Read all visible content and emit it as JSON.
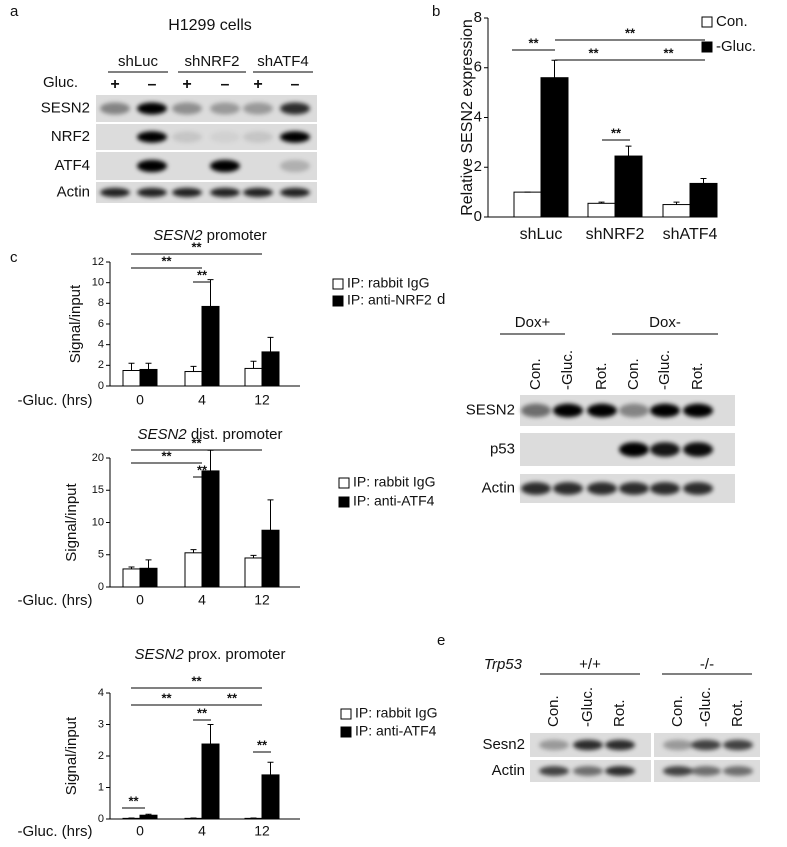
{
  "panel_labels": [
    "a",
    "b",
    "c",
    "d",
    "e"
  ],
  "blot_a": {
    "title": "H1299 cells",
    "groups": [
      "shLuc",
      "shNRF2",
      "shATF4"
    ],
    "treatment_label": "Gluc.",
    "treatments": [
      "+",
      "–",
      "+",
      "–",
      "+",
      "–"
    ],
    "rows": [
      "SESN2",
      "NRF2",
      "ATF4",
      "Actin"
    ]
  },
  "blot_d": {
    "groups": [
      "Dox+",
      "Dox-"
    ],
    "lanes": [
      "Con.",
      "-Gluc.",
      "Rot.",
      "Con.",
      "-Gluc.",
      "Rot."
    ],
    "rows": [
      "SESN2",
      "p53",
      "Actin"
    ]
  },
  "blot_e": {
    "genotype_label": "Trp53",
    "groups": [
      "+/+",
      "-/-"
    ],
    "lanes": [
      "Con.",
      "-Gluc.",
      "Rot.",
      "Con.",
      "-Gluc.",
      "Rot."
    ],
    "rows": [
      "Sesn2",
      "Actin"
    ]
  },
  "chart_data": [
    {
      "type": "bar",
      "y_label": "Relative SESN2 expression",
      "categories": [
        "shLuc",
        "shNRF2",
        "shATF4"
      ],
      "series": [
        {
          "name": "Con.",
          "color": "#ffffff",
          "values": [
            1,
            0.55,
            0.5
          ],
          "errors": [
            0,
            0.05,
            0.1
          ]
        },
        {
          "name": "-Gluc.",
          "color": "#000000",
          "values": [
            5.6,
            2.45,
            1.35
          ],
          "errors": [
            0.7,
            0.4,
            0.2
          ]
        }
      ],
      "ylim": [
        0,
        8
      ],
      "yticks": [
        0,
        2,
        4,
        6,
        8
      ],
      "annotations": [
        "**",
        "**",
        "**",
        "**",
        "**"
      ]
    },
    {
      "type": "bar",
      "title": "SESN2 promoter",
      "y_label": "Signal/input",
      "x_label": "-Gluc. (hrs)",
      "categories": [
        "0",
        "4",
        "12"
      ],
      "series": [
        {
          "name": "IP: rabbit IgG",
          "color": "#ffffff",
          "values": [
            1.5,
            1.4,
            1.7
          ],
          "errors": [
            0.7,
            0.5,
            0.7
          ]
        },
        {
          "name": "IP: anti-NRF2",
          "color": "#000000",
          "values": [
            1.6,
            7.7,
            3.3
          ],
          "errors": [
            0.6,
            2.6,
            1.4
          ]
        }
      ],
      "ylim": [
        0,
        12
      ],
      "yticks": [
        0,
        2,
        4,
        6,
        8,
        10,
        12
      ],
      "annotations": [
        "**",
        "**",
        "**"
      ]
    },
    {
      "type": "bar",
      "title": "SESN2 dist. promoter",
      "y_label": "Signal/input",
      "x_label": "-Gluc. (hrs)",
      "categories": [
        "0",
        "4",
        "12"
      ],
      "series": [
        {
          "name": "IP: rabbit IgG",
          "color": "#ffffff",
          "values": [
            2.8,
            5.3,
            4.5
          ],
          "errors": [
            0.3,
            0.5,
            0.4
          ]
        },
        {
          "name": "IP: anti-ATF4",
          "color": "#000000",
          "values": [
            2.9,
            18,
            8.8
          ],
          "errors": [
            1.3,
            3.2,
            4.7
          ]
        }
      ],
      "ylim": [
        0,
        20
      ],
      "yticks": [
        0,
        5,
        10,
        15,
        20
      ],
      "annotations": [
        "**",
        "**",
        "**"
      ]
    },
    {
      "type": "bar",
      "title": "SESN2 prox. promoter",
      "y_label": "Signal/input",
      "x_label": "-Gluc. (hrs)",
      "categories": [
        "0",
        "4",
        "12"
      ],
      "series": [
        {
          "name": "IP: rabbit IgG",
          "color": "#ffffff",
          "values": [
            0.02,
            0.02,
            0.02
          ],
          "errors": [
            0.01,
            0.01,
            0.01
          ]
        },
        {
          "name": "IP: anti-ATF4",
          "color": "#000000",
          "values": [
            0.12,
            2.38,
            1.4
          ],
          "errors": [
            0.03,
            0.62,
            0.4
          ]
        }
      ],
      "ylim": [
        0,
        4
      ],
      "yticks": [
        0,
        1,
        2,
        3,
        4
      ],
      "annotations": [
        "**",
        "**",
        "**",
        "**",
        "**",
        "**"
      ]
    }
  ]
}
